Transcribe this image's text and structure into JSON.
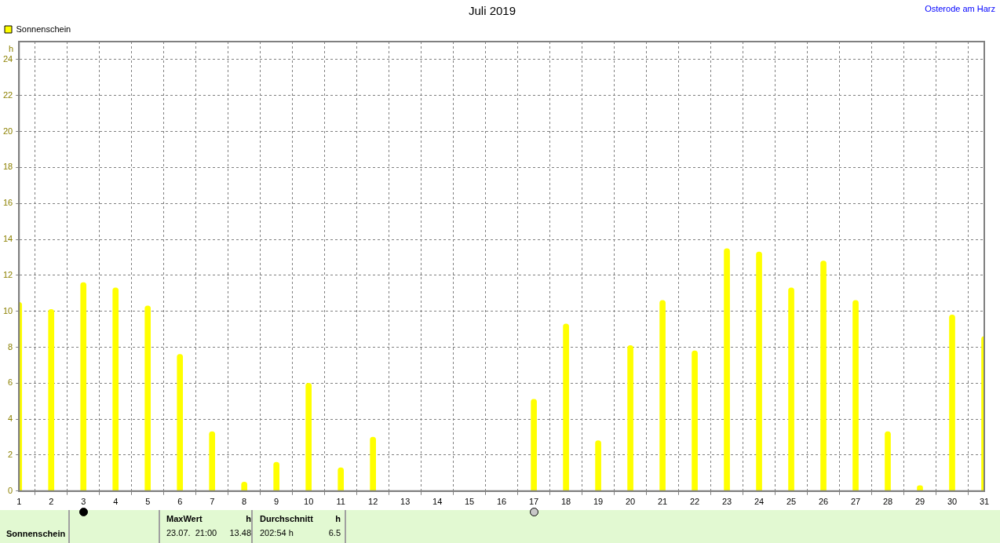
{
  "chart_data": {
    "type": "bar",
    "title": "Juli 2019",
    "subtitle": "Osterode am Harz",
    "ylabel": "h",
    "x": [
      1,
      2,
      3,
      4,
      5,
      6,
      7,
      8,
      9,
      10,
      11,
      12,
      13,
      14,
      15,
      16,
      17,
      18,
      19,
      20,
      21,
      22,
      23,
      24,
      25,
      26,
      27,
      28,
      29,
      30,
      31
    ],
    "series": [
      {
        "name": "Sonnenschein",
        "color": "#ffff00",
        "values": [
          10.5,
          10.1,
          11.6,
          11.3,
          10.3,
          7.6,
          3.3,
          0.5,
          1.6,
          6.0,
          1.3,
          3.0,
          0,
          0,
          0,
          0,
          5.1,
          9.3,
          2.8,
          8.1,
          10.6,
          7.8,
          13.48,
          13.3,
          11.3,
          12.8,
          10.6,
          3.3,
          0.3,
          9.8,
          8.6
        ]
      }
    ],
    "xlim": [
      1,
      31
    ],
    "xticks": [
      1,
      2,
      3,
      4,
      5,
      6,
      7,
      8,
      9,
      10,
      11,
      12,
      13,
      14,
      15,
      16,
      17,
      18,
      19,
      20,
      21,
      22,
      23,
      24,
      25,
      26,
      27,
      28,
      29,
      30,
      31
    ],
    "ylim": [
      0,
      25
    ],
    "yticks": [
      0,
      2,
      4,
      6,
      8,
      10,
      12,
      14,
      16,
      18,
      20,
      22,
      24
    ],
    "grid": true,
    "legend": "top left",
    "annotations": [
      "Sonnenschein",
      "MaxWert",
      "h",
      "23.07.  21:00",
      "13.48",
      "Durchschnitt",
      "h",
      "202:54 h",
      "6.5"
    ]
  }
}
